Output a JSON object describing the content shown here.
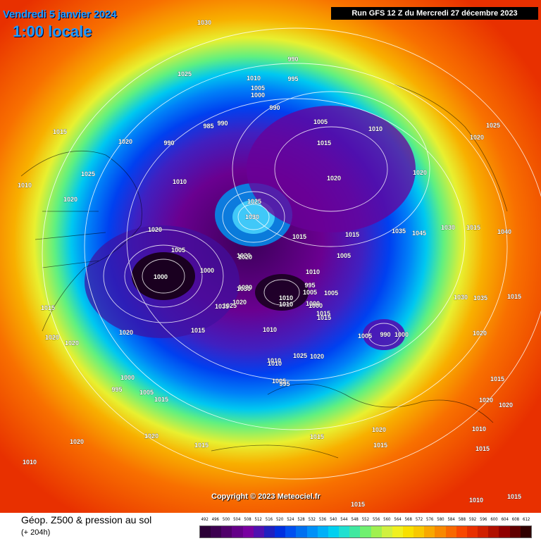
{
  "header": {
    "date": "Vendredi 5 janvier 2024",
    "time": "1:00 locale",
    "run": "Run GFS 12 Z du Mercredi 27 décembre 2023"
  },
  "copyright": "Copyright © 2023 Meteociel.fr",
  "footer": {
    "title": "Géop. Z500 & pression au sol",
    "subtitle": "(+ 204h)"
  },
  "legend": {
    "ticks": [
      "492",
      "496",
      "500",
      "504",
      "508",
      "512",
      "516",
      "520",
      "524",
      "528",
      "532",
      "536",
      "540",
      "544",
      "548",
      "552",
      "556",
      "560",
      "564",
      "568",
      "572",
      "576",
      "580",
      "584",
      "588",
      "592",
      "596",
      "600",
      "604",
      "608",
      "612"
    ],
    "colors": [
      "#2b0036",
      "#3c0050",
      "#50006a",
      "#640088",
      "#7800a0",
      "#5010b0",
      "#2020c0",
      "#0030e0",
      "#0050f0",
      "#0070f0",
      "#0090f8",
      "#00b0f8",
      "#00d0f0",
      "#20e0d0",
      "#40e8a0",
      "#70f070",
      "#a0f050",
      "#d0f040",
      "#f0f020",
      "#f8e000",
      "#f8c800",
      "#f8a800",
      "#f88800",
      "#f86800",
      "#f84800",
      "#e83000",
      "#d02000",
      "#b01000",
      "#900000",
      "#600000",
      "#300000"
    ]
  },
  "isobar_labels": [
    "1030",
    "1025",
    "1010",
    "1005",
    "1000",
    "990",
    "995",
    "990",
    "985",
    "990",
    "1005",
    "1015",
    "1010",
    "1020",
    "1015",
    "1020",
    "1015",
    "1025",
    "1020",
    "1020",
    "1010",
    "1020",
    "1025",
    "990",
    "1010",
    "1025",
    "1030",
    "1020",
    "1015",
    "1035",
    "1045",
    "1020",
    "1030",
    "1015",
    "1040",
    "1005",
    "1000",
    "1020",
    "1000",
    "1020",
    "1030",
    "1010",
    "1030",
    "1020",
    "1005",
    "1025",
    "1035",
    "1015",
    "1010",
    "1005",
    "1000",
    "995",
    "1000",
    "1005",
    "1010",
    "1030",
    "1035",
    "1015",
    "1015",
    "1020",
    "1020",
    "1005",
    "990",
    "1000",
    "1015",
    "1020",
    "1020",
    "1010",
    "1025",
    "1020",
    "1010",
    "1015",
    "1000",
    "995",
    "1005",
    "1015",
    "1005",
    "995",
    "1010",
    "1015",
    "1015",
    "1015",
    "1020",
    "1020",
    "1020",
    "1015",
    "1010",
    "1015",
    "1010",
    "1020",
    "1015",
    "1015",
    "1010"
  ]
}
